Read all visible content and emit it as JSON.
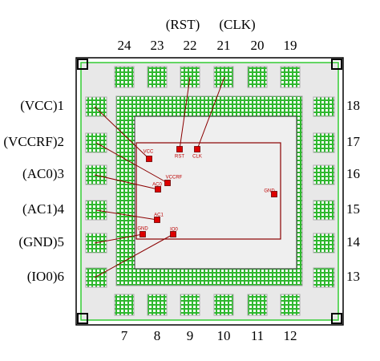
{
  "top_labels": [
    "(RST)",
    "(CLK)"
  ],
  "pins": {
    "top": [
      "24",
      "23",
      "22",
      "21",
      "20",
      "19"
    ],
    "left": [
      "(VCC)1",
      "(VCCRF)2",
      "(AC0)3",
      "(AC1)4",
      "(GND)5",
      "(IO0)6"
    ],
    "right": [
      "18",
      "17",
      "16",
      "15",
      "14",
      "13"
    ],
    "bottom": [
      "7",
      "8",
      "9",
      "10",
      "11",
      "12"
    ]
  },
  "die_pads": [
    "VCC",
    "RST",
    "CLK",
    "VCCRF",
    "AC0",
    "AC1",
    "GND",
    "IO0",
    "GND"
  ]
}
